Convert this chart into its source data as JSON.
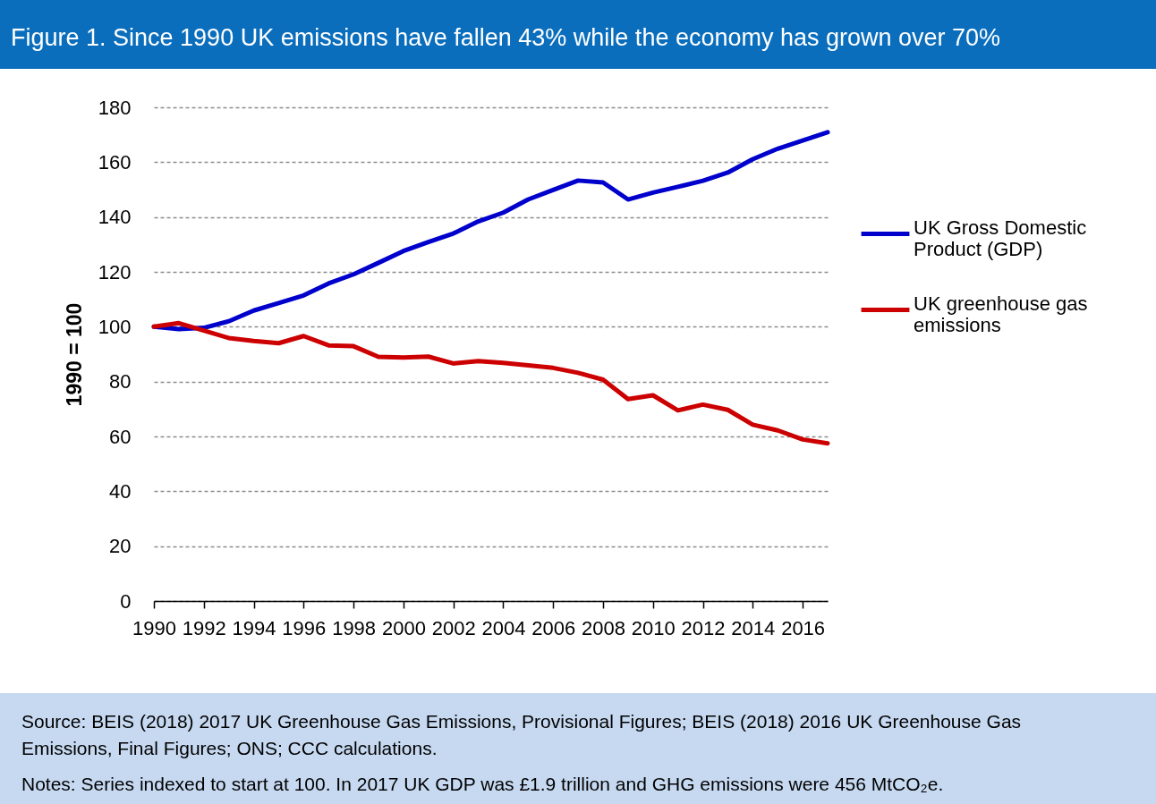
{
  "chart_data": {
    "type": "line",
    "title": "Figure 1. Since 1990 UK emissions have fallen 43% while the economy has grown over 70%",
    "ylabel": "1990 = 100",
    "x": [
      1990,
      1991,
      1992,
      1993,
      1994,
      1995,
      1996,
      1997,
      1998,
      1999,
      2000,
      2001,
      2002,
      2003,
      2004,
      2005,
      2006,
      2007,
      2008,
      2009,
      2010,
      2011,
      2012,
      2013,
      2014,
      2015,
      2016,
      2017
    ],
    "series": [
      {
        "name": "UK Gross Domestic Product (GDP)",
        "color": "#0000cc",
        "values": [
          100,
          99.1,
          99.6,
          102.0,
          105.9,
          108.6,
          111.4,
          115.8,
          119.1,
          123.3,
          127.6,
          130.9,
          134.0,
          138.4,
          141.6,
          146.4,
          149.9,
          153.3,
          152.6,
          146.4,
          148.9,
          151.0,
          153.2,
          156.2,
          161.1,
          164.9,
          167.9,
          170.9
        ]
      },
      {
        "name": "UK greenhouse gas emissions",
        "color": "#cc0000",
        "values": [
          100,
          101.3,
          98.6,
          95.9,
          94.8,
          94.0,
          96.6,
          93.2,
          92.9,
          89.0,
          88.8,
          89.1,
          86.6,
          87.5,
          86.8,
          85.9,
          85.0,
          83.2,
          80.7,
          73.6,
          75.0,
          69.5,
          71.6,
          69.7,
          64.3,
          62.2,
          58.9,
          57.5
        ]
      }
    ],
    "xlim": [
      1990,
      2017
    ],
    "xticks": [
      1990,
      1992,
      1994,
      1996,
      1998,
      2000,
      2002,
      2004,
      2006,
      2008,
      2010,
      2012,
      2014,
      2016
    ],
    "ylim": [
      0,
      180
    ],
    "yticks": [
      0,
      20,
      40,
      60,
      80,
      100,
      120,
      140,
      160,
      180
    ],
    "grid": "y",
    "legend": "right",
    "annotations": [
      "Source: BEIS (2018) 2017 UK Greenhouse Gas Emissions, Provisional Figures; BEIS (2018) 2016 UK Greenhouse Gas Emissions, Final Figures; ONS; CCC calculations.",
      "Notes: Series indexed to start at 100. In 2017 UK GDP was £1.9 trillion and GHG emissions were 456 MtCO₂e."
    ]
  }
}
